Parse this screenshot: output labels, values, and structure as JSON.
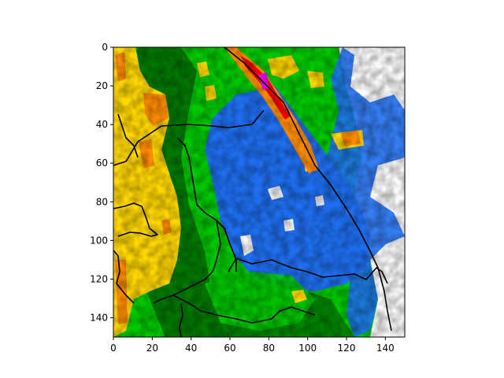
{
  "chart_data": {
    "type": "heatmap",
    "title": "",
    "xlabel": "",
    "ylabel": "",
    "xlim": [
      0,
      150
    ],
    "ylim": [
      150,
      0
    ],
    "y_inverted": true,
    "x_ticks": [
      0,
      20,
      40,
      60,
      80,
      100,
      120,
      140
    ],
    "y_ticks": [
      0,
      20,
      40,
      60,
      80,
      100,
      120,
      140
    ],
    "grid": false,
    "legend": "none",
    "colormap": [
      "#fafafa",
      "#1e6ef0",
      "#00c800",
      "#007800",
      "#ffd700",
      "#ff8c00",
      "#ff0000",
      "#ff00ff"
    ],
    "border_color": "#000000",
    "regions": [
      {
        "name": "left-band",
        "value": 4,
        "from_x": 0,
        "to_x": 30
      },
      {
        "name": "center",
        "value": 2,
        "from_x": 30,
        "to_x": 110
      },
      {
        "name": "blue-zone",
        "value": 1,
        "from_x": 50,
        "to_x": 130
      },
      {
        "name": "right-clear",
        "value": 0,
        "from_x": 115,
        "to_x": 150
      }
    ],
    "streak": {
      "x": [
        55,
        68,
        78,
        90,
        100
      ],
      "y": [
        0,
        10,
        20,
        40,
        60
      ],
      "value": 6
    }
  }
}
